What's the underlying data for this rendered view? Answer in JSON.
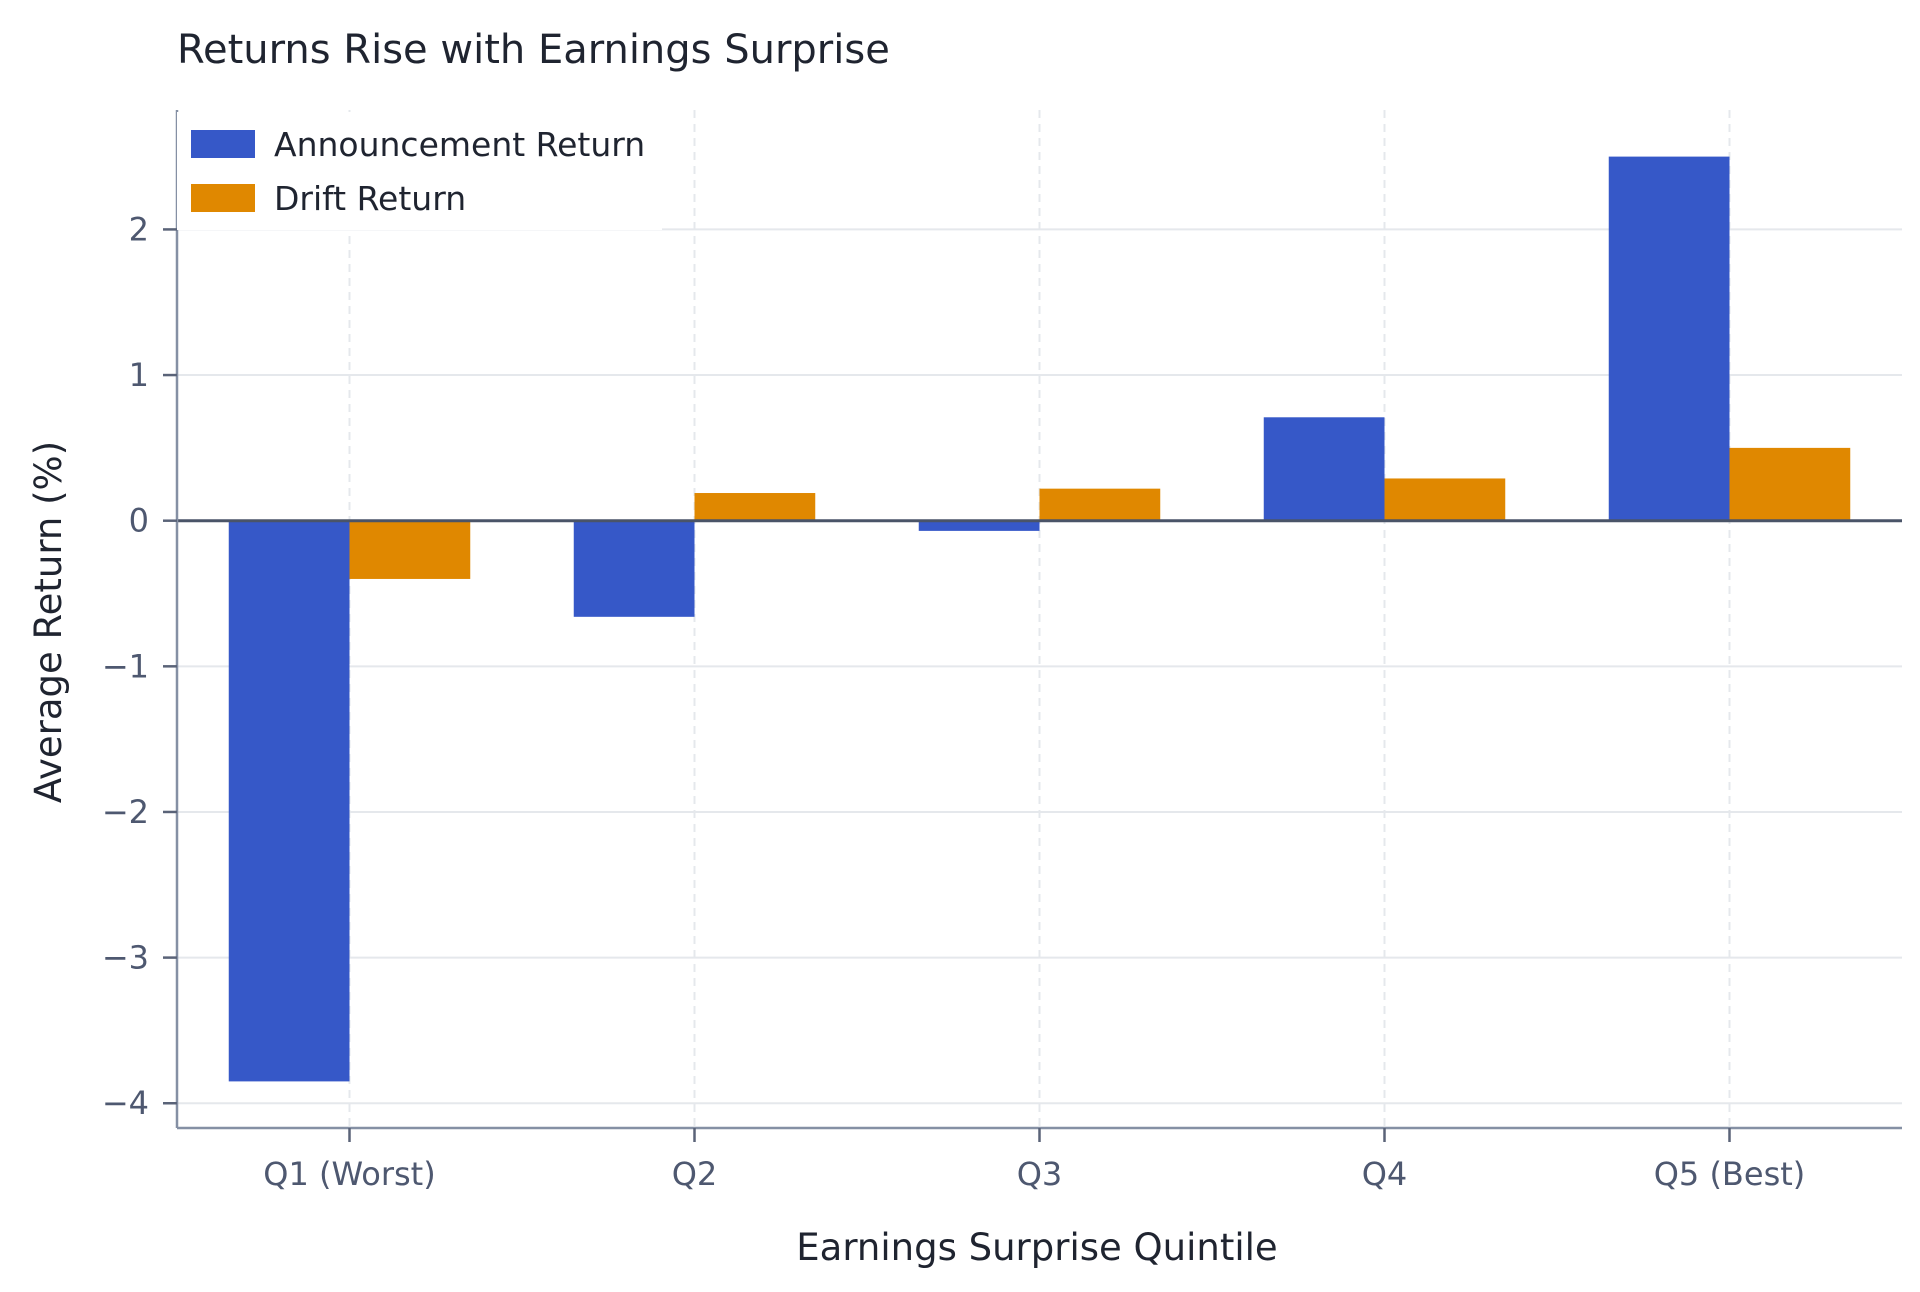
{
  "chart_data": {
    "type": "bar",
    "title": "Returns Rise with Earnings Surprise",
    "xlabel": "Earnings Surprise Quintile",
    "ylabel": "Average Return (%)",
    "categories": [
      "Q1 (Worst)",
      "Q2",
      "Q3",
      "Q4",
      "Q5 (Best)"
    ],
    "series": [
      {
        "name": "Announcement Return",
        "color": "#3658c8",
        "values": [
          -3.85,
          -0.66,
          -0.07,
          0.71,
          2.5
        ]
      },
      {
        "name": "Drift Return",
        "color": "#e08800",
        "values": [
          -0.4,
          0.19,
          0.22,
          0.29,
          0.5
        ]
      }
    ],
    "ylim": [
      -4.17,
      2.82
    ],
    "yticks": [
      {
        "value": 2,
        "label": "2"
      },
      {
        "value": 1,
        "label": "1"
      },
      {
        "value": 0,
        "label": "0"
      },
      {
        "value": -1,
        "label": "−1"
      },
      {
        "value": -2,
        "label": "−2"
      },
      {
        "value": -3,
        "label": "−3"
      },
      {
        "value": -4,
        "label": "−4"
      }
    ],
    "grid": true,
    "zero_line": true,
    "legend_position": "top-left"
  }
}
